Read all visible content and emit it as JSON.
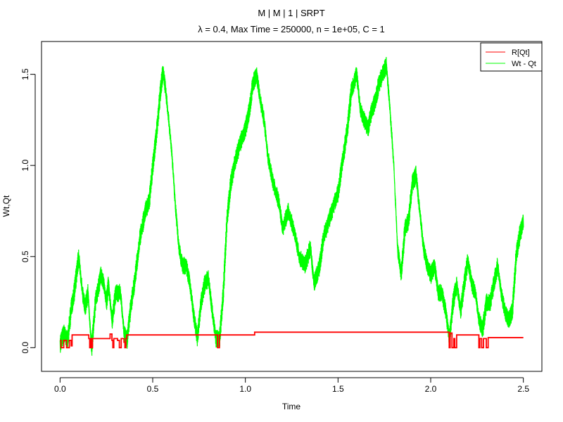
{
  "chart_data": {
    "type": "line",
    "title": "M | M | 1 | SRPT",
    "subtitle": "λ = 0.4, Max Time = 250000, n = 1e+05, C = 1",
    "xlabel": "Time",
    "ylabel": "Wt,Qt",
    "xlim": [
      -0.1,
      2.6
    ],
    "ylim": [
      -0.13,
      1.68
    ],
    "x_ticks": [
      0.0,
      0.5,
      1.0,
      1.5,
      2.0,
      2.5
    ],
    "x_tick_labels": [
      "0.0",
      "0.5",
      "1.0",
      "1.5",
      "2.0",
      "2.5"
    ],
    "y_ticks": [
      0.0,
      0.5,
      1.0,
      1.5
    ],
    "y_tick_labels": [
      "0.0",
      "0.5",
      "1.0",
      "1.5"
    ],
    "grid": false,
    "legend_position": "top-right",
    "series": [
      {
        "name": "R[Qt]",
        "color": "#ff0000",
        "step": true,
        "x": [
          0.0,
          0.005,
          0.02,
          0.035,
          0.05,
          0.06,
          0.065,
          0.12,
          0.155,
          0.16,
          0.165,
          0.17,
          0.175,
          0.18,
          0.26,
          0.27,
          0.275,
          0.28,
          0.285,
          0.29,
          0.31,
          0.32,
          0.33,
          0.345,
          0.35,
          0.355,
          0.36,
          0.37,
          0.42,
          0.6,
          0.8,
          0.85,
          0.86,
          0.87,
          0.9,
          1.05,
          1.3,
          1.6,
          1.9,
          2.1,
          2.105,
          2.115,
          2.125,
          2.13,
          2.14,
          2.21,
          2.25,
          2.26,
          2.265,
          2.275,
          2.285,
          2.3,
          2.31,
          2.4,
          2.5
        ],
        "values": [
          0.04,
          0.0,
          0.04,
          0.0,
          0.04,
          0.01,
          0.07,
          0.07,
          0.05,
          0.0,
          0.05,
          0.0,
          0.05,
          0.05,
          0.05,
          0.075,
          0.075,
          0.04,
          0.0,
          0.05,
          0.04,
          0.0,
          0.05,
          0.03,
          0.0,
          0.05,
          0.07,
          0.07,
          0.07,
          0.07,
          0.07,
          0.0,
          0.07,
          0.07,
          0.07,
          0.085,
          0.085,
          0.085,
          0.085,
          0.0,
          0.08,
          0.0,
          0.05,
          0.0,
          0.07,
          0.07,
          0.07,
          0.0,
          0.05,
          0.0,
          0.05,
          0.0,
          0.055,
          0.055,
          0.055
        ]
      },
      {
        "name": "Wt - Qt",
        "color": "#00ff00",
        "step": false,
        "noise_band": 0.05,
        "x": [
          0.0,
          0.02,
          0.04,
          0.06,
          0.075,
          0.09,
          0.1,
          0.12,
          0.135,
          0.15,
          0.165,
          0.17,
          0.19,
          0.22,
          0.235,
          0.25,
          0.26,
          0.28,
          0.3,
          0.325,
          0.345,
          0.36,
          0.38,
          0.4,
          0.43,
          0.46,
          0.48,
          0.5,
          0.52,
          0.54,
          0.555,
          0.57,
          0.6,
          0.62,
          0.64,
          0.66,
          0.68,
          0.7,
          0.72,
          0.74,
          0.76,
          0.78,
          0.8,
          0.82,
          0.84,
          0.86,
          0.88,
          0.9,
          0.92,
          0.95,
          0.98,
          1.0,
          1.02,
          1.04,
          1.06,
          1.08,
          1.1,
          1.12,
          1.15,
          1.18,
          1.2,
          1.23,
          1.26,
          1.29,
          1.32,
          1.35,
          1.37,
          1.4,
          1.42,
          1.45,
          1.48,
          1.5,
          1.52,
          1.55,
          1.57,
          1.6,
          1.62,
          1.64,
          1.66,
          1.68,
          1.7,
          1.72,
          1.74,
          1.76,
          1.78,
          1.8,
          1.82,
          1.84,
          1.86,
          1.88,
          1.9,
          1.92,
          1.94,
          1.96,
          1.98,
          2.0,
          2.02,
          2.04,
          2.06,
          2.08,
          2.1,
          2.12,
          2.14,
          2.16,
          2.18,
          2.2,
          2.22,
          2.24,
          2.26,
          2.28,
          2.3,
          2.32,
          2.34,
          2.36,
          2.38,
          2.4,
          2.42,
          2.44,
          2.46,
          2.48,
          2.5
        ],
        "values": [
          0.02,
          0.08,
          0.04,
          0.22,
          0.3,
          0.42,
          0.5,
          0.3,
          0.22,
          0.3,
          0.05,
          0.0,
          0.25,
          0.4,
          0.35,
          0.25,
          0.35,
          0.15,
          0.3,
          0.3,
          0.08,
          0.04,
          0.22,
          0.35,
          0.6,
          0.75,
          0.8,
          1.0,
          1.18,
          1.4,
          1.52,
          1.4,
          1.1,
          0.8,
          0.55,
          0.45,
          0.45,
          0.35,
          0.18,
          0.05,
          0.25,
          0.35,
          0.38,
          0.2,
          0.05,
          0.05,
          0.3,
          0.7,
          0.9,
          1.05,
          1.15,
          1.2,
          1.3,
          1.45,
          1.5,
          1.35,
          1.25,
          1.05,
          0.9,
          0.8,
          0.65,
          0.75,
          0.65,
          0.5,
          0.45,
          0.55,
          0.35,
          0.45,
          0.6,
          0.7,
          0.8,
          0.85,
          1.0,
          1.2,
          1.4,
          1.5,
          1.3,
          1.25,
          1.2,
          1.3,
          1.35,
          1.45,
          1.5,
          1.55,
          1.3,
          1.0,
          0.55,
          0.4,
          0.65,
          0.7,
          0.9,
          0.95,
          0.75,
          0.55,
          0.45,
          0.4,
          0.45,
          0.3,
          0.3,
          0.2,
          0.05,
          0.25,
          0.35,
          0.2,
          0.35,
          0.48,
          0.35,
          0.3,
          0.15,
          0.1,
          0.25,
          0.25,
          0.35,
          0.45,
          0.3,
          0.2,
          0.15,
          0.2,
          0.5,
          0.62,
          0.7
        ]
      }
    ]
  }
}
